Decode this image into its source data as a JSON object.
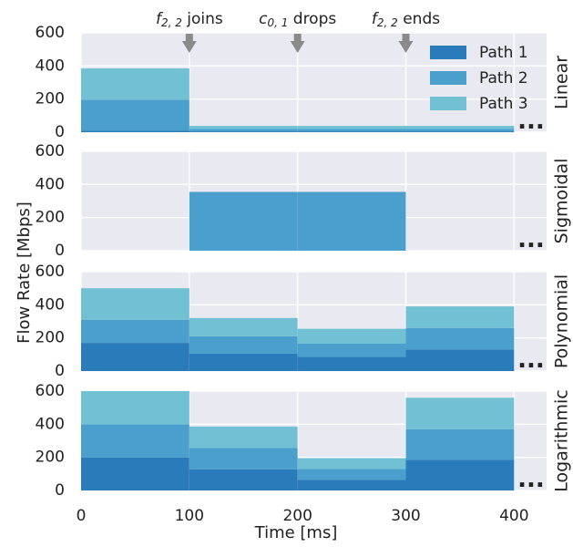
{
  "colors": {
    "panel_bg": "#e9e9f1",
    "grid": "#ffffff",
    "path1": "#2a7bb9",
    "path2": "#4a9fcc",
    "path3": "#72c0d3",
    "marker": "#8a8a8a"
  },
  "chart_data": {
    "type": "area",
    "xlabel": "Time [ms]",
    "ylabel": "Flow Rate [Mbps]",
    "xlim": [
      0,
      430
    ],
    "ylim": [
      0,
      600
    ],
    "x_ticks": [
      "0",
      "100",
      "200",
      "300",
      "400"
    ],
    "y_ticks": [
      "0",
      "200",
      "400",
      "600"
    ],
    "grid": true,
    "legend_position": "top-right",
    "legend": [
      "Path 1",
      "Path 2",
      "Path 3"
    ],
    "continuation": "...",
    "events": [
      {
        "x": 100,
        "label": "f",
        "sub": "2, 2",
        "suffix": " joins"
      },
      {
        "x": 200,
        "label": "c",
        "sub": "0, 1",
        "suffix": " drops"
      },
      {
        "x": 300,
        "label": "f",
        "sub": "2, 2",
        "suffix": " ends"
      }
    ],
    "panels": [
      {
        "title": "Linear",
        "segments": [
          {
            "x0": 0,
            "x1": 100,
            "values": [
              10,
              185,
              190
            ]
          },
          {
            "x0": 100,
            "x1": 200,
            "values": [
              5,
              15,
              18
            ]
          },
          {
            "x0": 200,
            "x1": 300,
            "values": [
              5,
              15,
              18
            ]
          },
          {
            "x0": 300,
            "x1": 400,
            "values": [
              5,
              15,
              18
            ]
          }
        ]
      },
      {
        "title": "Sigmoidal",
        "segments": [
          {
            "x0": 100,
            "x1": 200,
            "values": [
              0,
              355,
              0
            ]
          },
          {
            "x0": 200,
            "x1": 300,
            "values": [
              0,
              355,
              0
            ]
          }
        ]
      },
      {
        "title": "Polynomial",
        "segments": [
          {
            "x0": 0,
            "x1": 100,
            "values": [
              170,
              140,
              190
            ]
          },
          {
            "x0": 100,
            "x1": 200,
            "values": [
              105,
              105,
              110
            ]
          },
          {
            "x0": 200,
            "x1": 300,
            "values": [
              85,
              80,
              90
            ]
          },
          {
            "x0": 300,
            "x1": 400,
            "values": [
              130,
              130,
              130
            ]
          }
        ]
      },
      {
        "title": "Logarithmic",
        "segments": [
          {
            "x0": 0,
            "x1": 100,
            "values": [
              200,
              200,
              200
            ]
          },
          {
            "x0": 100,
            "x1": 200,
            "values": [
              128,
              128,
              130
            ]
          },
          {
            "x0": 200,
            "x1": 300,
            "values": [
              65,
              65,
              65
            ]
          },
          {
            "x0": 300,
            "x1": 400,
            "values": [
              185,
              185,
              190
            ]
          }
        ]
      }
    ]
  }
}
